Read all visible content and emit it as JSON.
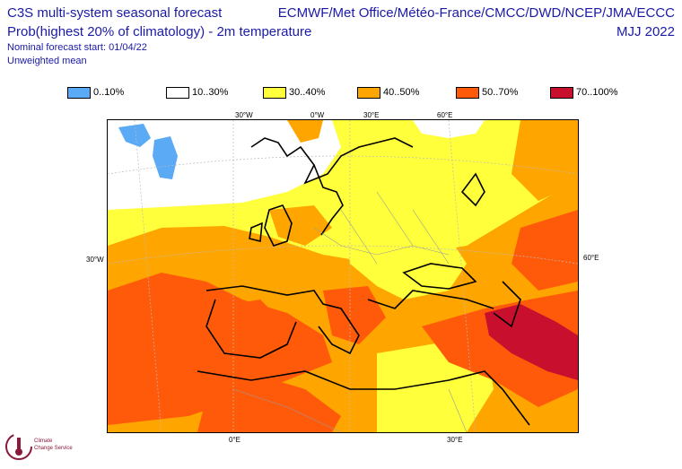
{
  "header": {
    "title_line1": "C3S multi-system seasonal forecast",
    "title_line2": "Prob(highest 20% of climatology) - 2m temperature",
    "nominal_start": "Nominal forecast start: 01/04/22",
    "weighting": "Unweighted mean",
    "centres": "ECMWF/Met Office/Météo-France/CMCC/DWD/NCEP/JMA/ECCC",
    "season": "MJJ 2022"
  },
  "legend": [
    {
      "label": "0..10%",
      "color": "#5aaaf5"
    },
    {
      "label": "10..30%",
      "color": "#ffffff"
    },
    {
      "label": "30..40%",
      "color": "#ffff3c"
    },
    {
      "label": "40..50%",
      "color": "#ffa500"
    },
    {
      "label": "50..70%",
      "color": "#ff5a0a"
    },
    {
      "label": "70..100%",
      "color": "#c8102e"
    }
  ],
  "graticule_labels": {
    "top_30w": "30°W",
    "top_0": "0°W",
    "top_30e": "30°E",
    "top_60e": "60°E",
    "left_30w": "30°W",
    "right_60e": "60°E",
    "bottom_0": "0°E",
    "bottom_30e": "30°E"
  },
  "logo": {
    "line1": "Climate",
    "line2": "Change Service"
  }
}
